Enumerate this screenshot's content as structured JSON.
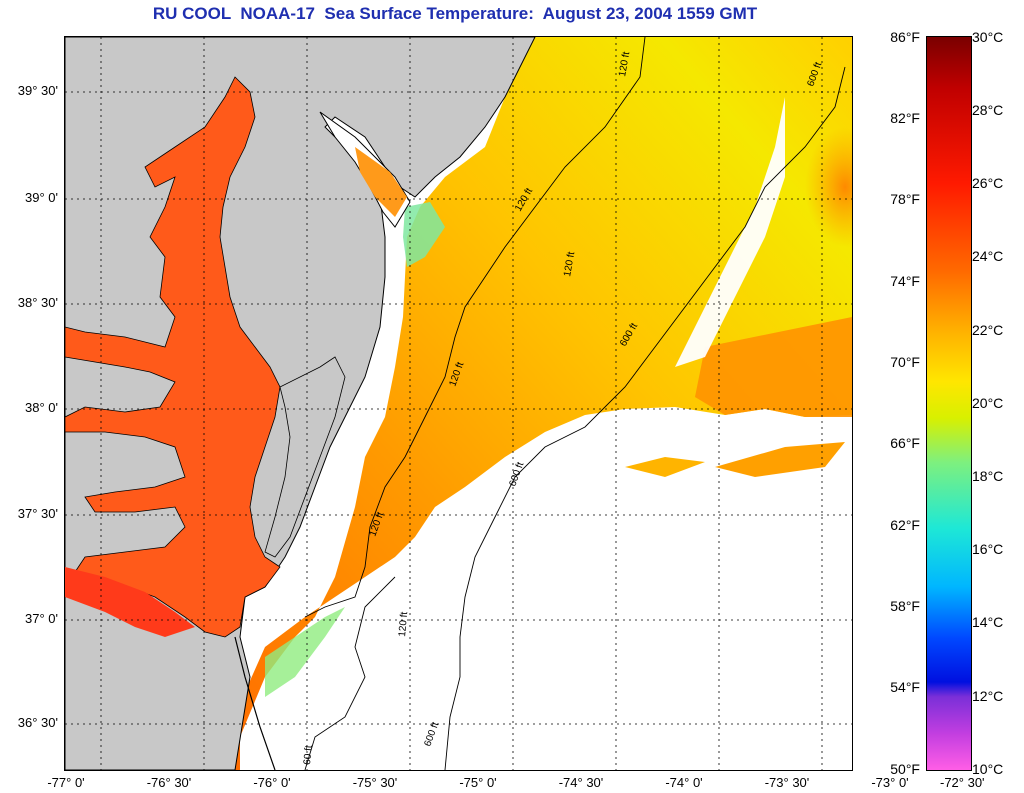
{
  "title": "RU COOL  NOAA-17  Sea Surface Temperature:  August 23, 2004 1559 GMT",
  "map": {
    "lat_labels": [
      "39° 30'",
      "39° 0'",
      "38° 30'",
      "38° 0'",
      "37° 30'",
      "37° 0'",
      "36° 30'"
    ],
    "lon_labels": [
      "-77° 0'",
      "-76° 30'",
      "-76° 0'",
      "-75° 30'",
      "-75° 0'",
      "-74° 30'",
      "-74° 0'",
      "-73° 30'",
      "-73° 0'",
      "-72° 30'"
    ],
    "contour_labels": [
      "120 ft",
      "600 ft",
      "120 ft",
      "120 ft",
      "600 ft",
      "120 ft",
      "600 ft",
      "120 ft",
      "120 ft",
      "600 ft",
      "60 ft"
    ],
    "colors": {
      "land": "#c8c8c8",
      "no_data": "#ffffff",
      "bay_water": "#ff5a1a",
      "warm_ocean": "#ff8c00",
      "mid_ocean": "#ffc800",
      "cool_ocean": "#e8f000",
      "coastal_cool": "#60e8a0"
    }
  },
  "colorbar": {
    "fahrenheit_labels": [
      "86°F",
      "82°F",
      "78°F",
      "74°F",
      "70°F",
      "66°F",
      "62°F",
      "58°F",
      "54°F",
      "50°F"
    ],
    "celsius_labels": [
      "30°C",
      "28°C",
      "26°C",
      "24°C",
      "22°C",
      "20°C",
      "18°C",
      "16°C",
      "14°C",
      "12°C",
      "10°C"
    ],
    "range_f": [
      50,
      86
    ],
    "range_c": [
      10,
      30
    ]
  }
}
